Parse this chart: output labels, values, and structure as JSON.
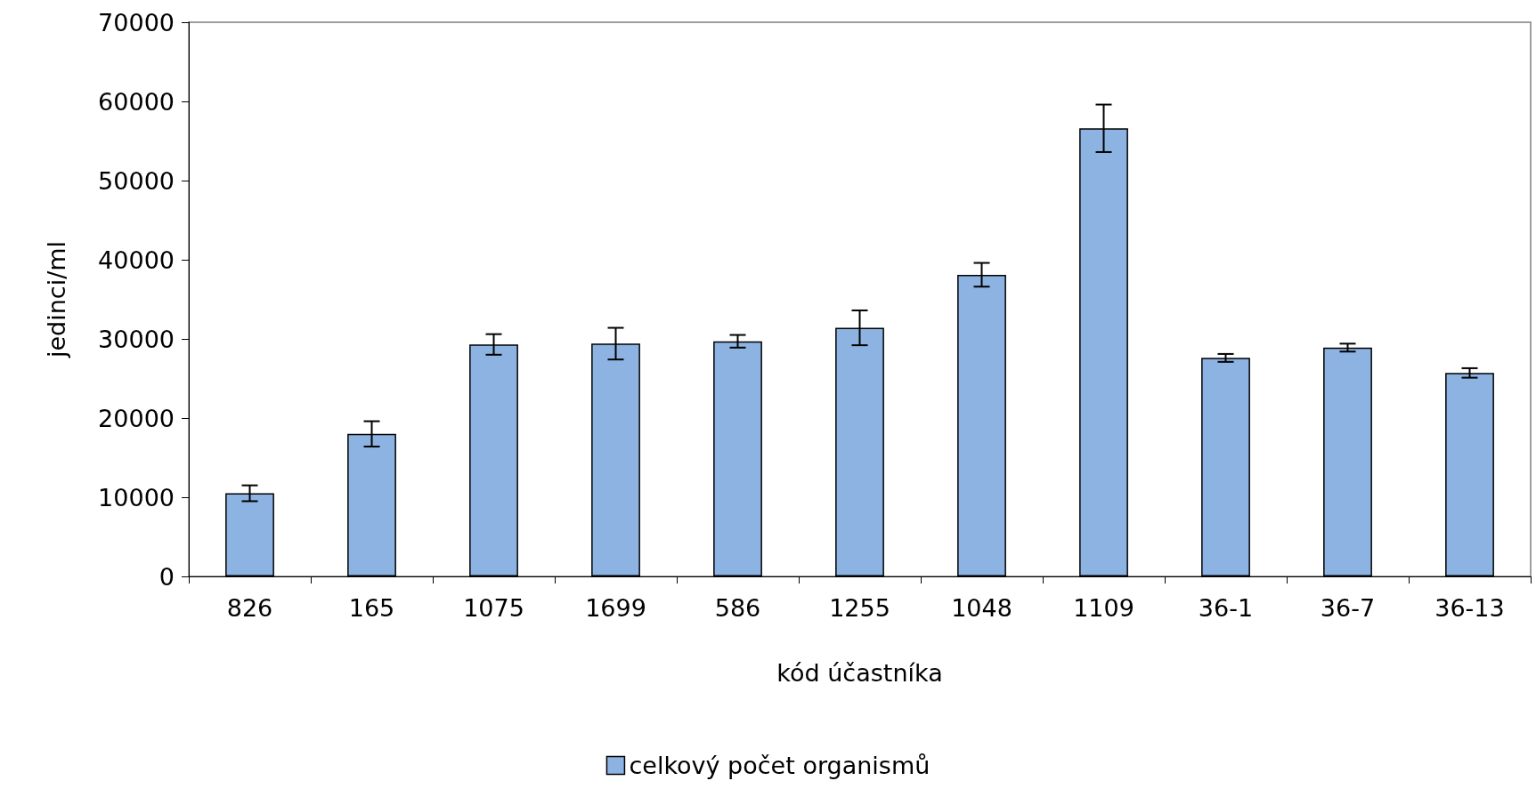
{
  "chart_data": {
    "type": "bar",
    "xlabel": "kód účastníka",
    "ylabel": "jedinci/ml",
    "categories": [
      "826",
      "165",
      "1075",
      "1699",
      "586",
      "1255",
      "1048",
      "1109",
      "36-1",
      "36-7",
      "36-13"
    ],
    "series": [
      {
        "name": "celkový počet organismů",
        "color": "#8db3e2",
        "values": [
          10500,
          18000,
          29300,
          29400,
          29700,
          31400,
          38100,
          56600,
          27600,
          28900,
          25700
        ],
        "errors": [
          1000,
          1600,
          1300,
          2000,
          800,
          2200,
          1500,
          3000,
          500,
          500,
          600
        ]
      }
    ],
    "ylim": [
      0,
      70000
    ],
    "yticks": [
      0,
      10000,
      20000,
      30000,
      40000,
      50000,
      60000,
      70000
    ],
    "grid": false,
    "legend": "bottom"
  }
}
